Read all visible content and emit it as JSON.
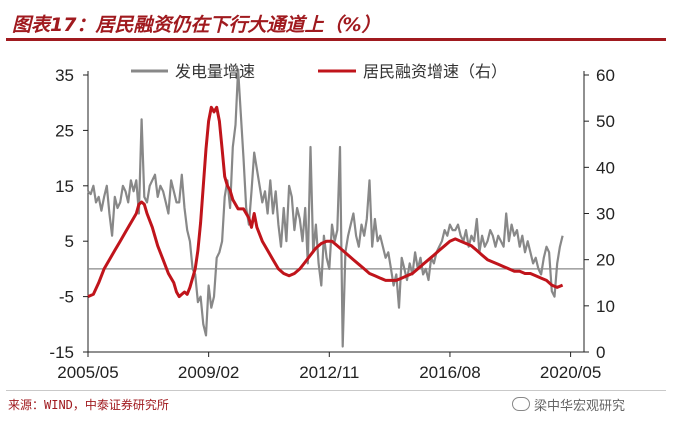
{
  "header": {
    "title": "图表17：居民融资仍在下行大通道上（%）"
  },
  "footer": {
    "source": "来源：WIND，中泰证券研究所",
    "brand": "梁中华宏观研究"
  },
  "colors": {
    "series1": "#888888",
    "series2": "#c0141b",
    "accent": "#a01a1f"
  },
  "chart_data": {
    "type": "line",
    "x_tick_labels": [
      "2005/05",
      "2009/02",
      "2012/11",
      "2016/08",
      "2020/05"
    ],
    "x_tick_months": [
      0,
      45,
      90,
      135,
      180
    ],
    "x_range_months": [
      0,
      185
    ],
    "y_left": {
      "ticks": [
        "35",
        "25",
        "15",
        "5",
        "-5",
        "-15"
      ],
      "tick_values": [
        35,
        25,
        15,
        5,
        -5,
        -15
      ],
      "range": [
        -15,
        35
      ],
      "zero_line": 0
    },
    "y_right": {
      "ticks": [
        "60",
        "50",
        "40",
        "30",
        "20",
        "10",
        "0"
      ],
      "tick_values": [
        60,
        50,
        40,
        30,
        20,
        10,
        0
      ],
      "range": [
        0,
        60
      ]
    },
    "legend_position": "top",
    "series": [
      {
        "name": "发电量增速",
        "axis": "left",
        "points": [
          [
            0,
            14
          ],
          [
            1,
            13.5
          ],
          [
            2,
            15
          ],
          [
            3,
            12
          ],
          [
            4,
            13
          ],
          [
            5,
            10.5
          ],
          [
            6,
            13
          ],
          [
            7,
            15
          ],
          [
            8,
            10
          ],
          [
            9,
            6
          ],
          [
            10,
            13
          ],
          [
            11,
            11
          ],
          [
            12,
            12
          ],
          [
            13,
            15
          ],
          [
            14,
            14
          ],
          [
            15,
            12
          ],
          [
            16,
            16
          ],
          [
            17,
            14
          ],
          [
            18,
            16
          ],
          [
            19,
            10
          ],
          [
            20,
            27
          ],
          [
            21,
            13
          ],
          [
            22,
            12
          ],
          [
            23,
            15
          ],
          [
            24,
            16
          ],
          [
            25,
            17
          ],
          [
            26,
            13
          ],
          [
            27,
            15
          ],
          [
            28,
            14
          ],
          [
            29,
            12
          ],
          [
            30,
            10
          ],
          [
            31,
            16
          ],
          [
            32,
            14
          ],
          [
            33,
            12
          ],
          [
            34,
            12
          ],
          [
            35,
            17
          ],
          [
            36,
            11
          ],
          [
            37,
            7
          ],
          [
            38,
            5
          ],
          [
            39,
            0
          ],
          [
            40,
            -1
          ],
          [
            41,
            -6
          ],
          [
            42,
            -5
          ],
          [
            43,
            -10
          ],
          [
            44,
            -12
          ],
          [
            45,
            -3
          ],
          [
            46,
            -7
          ],
          [
            47,
            -5
          ],
          [
            48,
            2
          ],
          [
            49,
            3
          ],
          [
            50,
            5
          ],
          [
            51,
            13
          ],
          [
            52,
            16
          ],
          [
            53,
            11
          ],
          [
            54,
            22
          ],
          [
            55,
            26
          ],
          [
            56,
            36
          ],
          [
            57,
            28
          ],
          [
            58,
            20
          ],
          [
            59,
            11
          ],
          [
            60,
            8
          ],
          [
            61,
            14
          ],
          [
            62,
            21
          ],
          [
            63,
            18
          ],
          [
            64,
            15
          ],
          [
            65,
            12
          ],
          [
            66,
            14
          ],
          [
            67,
            10
          ],
          [
            68,
            16
          ],
          [
            69,
            10
          ],
          [
            70,
            14
          ],
          [
            71,
            8
          ],
          [
            72,
            4
          ],
          [
            73,
            11
          ],
          [
            74,
            5
          ],
          [
            75,
            15
          ],
          [
            76,
            13
          ],
          [
            77,
            7
          ],
          [
            78,
            11
          ],
          [
            79,
            9
          ],
          [
            80,
            5
          ],
          [
            81,
            11
          ],
          [
            82,
            1
          ],
          [
            83,
            22
          ],
          [
            84,
            3
          ],
          [
            85,
            8
          ],
          [
            86,
            1
          ],
          [
            87,
            -3
          ],
          [
            88,
            6
          ],
          [
            89,
            2
          ],
          [
            90,
            0
          ],
          [
            91,
            8
          ],
          [
            92,
            5
          ],
          [
            93,
            7
          ],
          [
            94,
            22
          ],
          [
            95,
            -14
          ],
          [
            96,
            3
          ],
          [
            97,
            6
          ],
          [
            98,
            8
          ],
          [
            99,
            10
          ],
          [
            100,
            6
          ],
          [
            101,
            4
          ],
          [
            102,
            8
          ],
          [
            103,
            6
          ],
          [
            104,
            9
          ],
          [
            105,
            16
          ],
          [
            106,
            4
          ],
          [
            107,
            9
          ],
          [
            108,
            5
          ],
          [
            109,
            6
          ],
          [
            110,
            4
          ],
          [
            111,
            2
          ],
          [
            112,
            3
          ],
          [
            113,
            0
          ],
          [
            114,
            -3
          ],
          [
            115,
            -1
          ],
          [
            116,
            -7
          ],
          [
            117,
            2
          ],
          [
            118,
            0
          ],
          [
            119,
            -2
          ],
          [
            120,
            1
          ],
          [
            121,
            -1
          ],
          [
            122,
            3
          ],
          [
            123,
            0
          ],
          [
            124,
            2
          ],
          [
            125,
            -1
          ],
          [
            126,
            0
          ],
          [
            127,
            -2
          ],
          [
            128,
            2
          ],
          [
            129,
            1
          ],
          [
            130,
            3
          ],
          [
            131,
            4
          ],
          [
            132,
            5
          ],
          [
            133,
            7
          ],
          [
            134,
            6
          ],
          [
            135,
            8
          ],
          [
            136,
            7
          ],
          [
            137,
            7
          ],
          [
            138,
            8
          ],
          [
            139,
            6
          ],
          [
            140,
            5
          ],
          [
            141,
            7
          ],
          [
            142,
            4
          ],
          [
            143,
            6
          ],
          [
            144,
            5
          ],
          [
            145,
            9
          ],
          [
            146,
            3
          ],
          [
            147,
            6
          ],
          [
            148,
            4
          ],
          [
            149,
            5
          ],
          [
            150,
            7
          ],
          [
            151,
            6
          ],
          [
            152,
            4
          ],
          [
            153,
            6
          ],
          [
            154,
            5
          ],
          [
            155,
            4
          ],
          [
            156,
            10
          ],
          [
            157,
            5
          ],
          [
            158,
            8
          ],
          [
            159,
            6
          ],
          [
            160,
            7
          ],
          [
            161,
            4
          ],
          [
            162,
            6
          ],
          [
            163,
            3
          ],
          [
            164,
            5
          ],
          [
            165,
            3
          ],
          [
            166,
            1
          ],
          [
            167,
            2
          ],
          [
            168,
            0
          ],
          [
            169,
            -1
          ],
          [
            170,
            2
          ],
          [
            171,
            4
          ],
          [
            172,
            3
          ],
          [
            173,
            -4
          ],
          [
            174,
            -5
          ],
          [
            175,
            1
          ],
          [
            176,
            4
          ],
          [
            177,
            6
          ]
        ]
      },
      {
        "name": "居民融资增速（右）",
        "axis": "right",
        "points": [
          [
            0,
            12
          ],
          [
            2,
            12.5
          ],
          [
            4,
            15
          ],
          [
            6,
            18
          ],
          [
            8,
            20
          ],
          [
            10,
            22
          ],
          [
            12,
            24
          ],
          [
            14,
            26
          ],
          [
            16,
            28
          ],
          [
            18,
            30
          ],
          [
            19,
            32
          ],
          [
            20,
            32.5
          ],
          [
            21,
            32
          ],
          [
            22,
            30
          ],
          [
            24,
            27
          ],
          [
            26,
            23
          ],
          [
            28,
            20
          ],
          [
            30,
            17
          ],
          [
            32,
            15
          ],
          [
            33,
            13
          ],
          [
            34,
            12
          ],
          [
            35,
            12.5
          ],
          [
            36,
            13
          ],
          [
            37,
            12.5
          ],
          [
            38,
            14
          ],
          [
            40,
            18
          ],
          [
            41,
            22
          ],
          [
            42,
            28
          ],
          [
            43,
            36
          ],
          [
            44,
            44
          ],
          [
            45,
            50
          ],
          [
            46,
            53
          ],
          [
            47,
            52
          ],
          [
            48,
            53
          ],
          [
            49,
            50
          ],
          [
            50,
            44
          ],
          [
            51,
            38
          ],
          [
            52,
            36
          ],
          [
            53,
            35
          ],
          [
            54,
            33
          ],
          [
            56,
            31
          ],
          [
            58,
            31
          ],
          [
            60,
            29
          ],
          [
            61,
            27
          ],
          [
            62,
            30
          ],
          [
            63,
            27
          ],
          [
            65,
            24
          ],
          [
            67,
            22
          ],
          [
            69,
            20
          ],
          [
            71,
            18
          ],
          [
            73,
            17
          ],
          [
            75,
            16.5
          ],
          [
            77,
            17
          ],
          [
            79,
            18
          ],
          [
            81,
            19.5
          ],
          [
            83,
            21
          ],
          [
            85,
            22.5
          ],
          [
            87,
            23.5
          ],
          [
            89,
            24
          ],
          [
            91,
            24
          ],
          [
            93,
            23
          ],
          [
            95,
            22
          ],
          [
            97,
            21
          ],
          [
            99,
            20
          ],
          [
            101,
            19
          ],
          [
            103,
            18
          ],
          [
            105,
            17
          ],
          [
            107,
            16.5
          ],
          [
            109,
            16
          ],
          [
            111,
            15.5
          ],
          [
            113,
            15.5
          ],
          [
            115,
            15.5
          ],
          [
            117,
            16
          ],
          [
            119,
            16.5
          ],
          [
            121,
            17
          ],
          [
            123,
            18
          ],
          [
            125,
            19
          ],
          [
            127,
            20
          ],
          [
            129,
            21
          ],
          [
            131,
            22
          ],
          [
            133,
            23
          ],
          [
            135,
            24
          ],
          [
            137,
            24.5
          ],
          [
            139,
            24
          ],
          [
            141,
            23.5
          ],
          [
            143,
            23
          ],
          [
            145,
            22
          ],
          [
            147,
            21
          ],
          [
            149,
            20
          ],
          [
            151,
            19.5
          ],
          [
            153,
            19
          ],
          [
            155,
            18.5
          ],
          [
            157,
            18
          ],
          [
            159,
            17.5
          ],
          [
            161,
            17.5
          ],
          [
            163,
            17
          ],
          [
            165,
            17
          ],
          [
            167,
            16.5
          ],
          [
            169,
            16
          ],
          [
            171,
            15.5
          ],
          [
            173,
            14.5
          ],
          [
            175,
            14
          ],
          [
            177,
            14.5
          ]
        ]
      }
    ]
  }
}
